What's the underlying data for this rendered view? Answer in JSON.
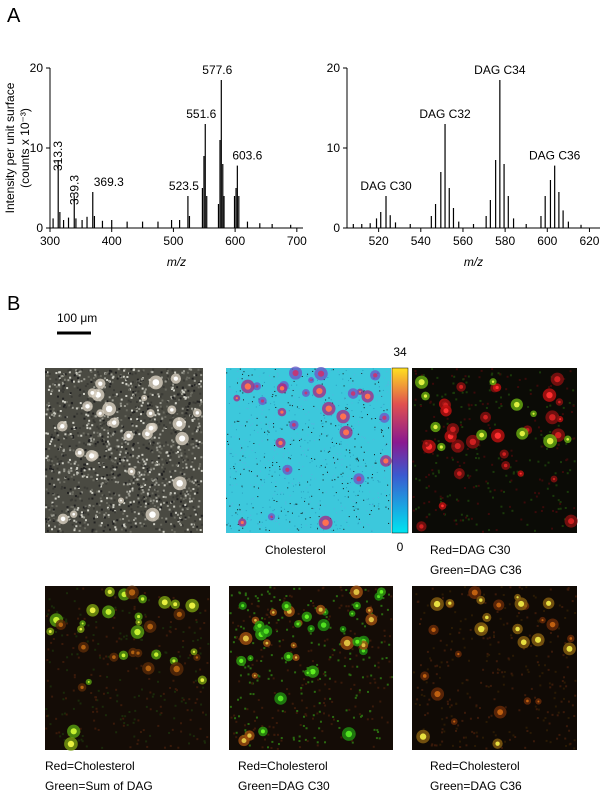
{
  "panel_labels": [
    "A",
    "B"
  ],
  "chart_data": [
    {
      "type": "bar",
      "xlabel": "m/z",
      "ylabel": [
        "Intensity per unit surface",
        "(counts x 10⁻³)"
      ],
      "xlim": [
        300,
        710
      ],
      "xticks": [
        300,
        400,
        500,
        600,
        700
      ],
      "ylim": [
        0,
        20
      ],
      "yticks": [
        0,
        10,
        20
      ],
      "color": "#000000",
      "x": [
        305,
        313.3,
        316,
        322,
        330,
        339.3,
        342,
        352,
        360,
        369.3,
        372,
        385,
        400,
        425,
        450,
        475,
        497,
        510,
        523.5,
        526,
        547,
        549.5,
        551.6,
        554,
        573,
        575.5,
        577.6,
        580,
        582,
        599,
        601.5,
        603.6,
        606,
        620,
        640,
        660,
        690
      ],
      "values": [
        1.2,
        8.5,
        2,
        1,
        1.3,
        4,
        1.2,
        1,
        1.4,
        4.5,
        1.5,
        0.9,
        1,
        0.8,
        0.8,
        0.8,
        1,
        1,
        4,
        1.5,
        5,
        9,
        13,
        4,
        3,
        11,
        18.5,
        8,
        4,
        4,
        5,
        7.8,
        4,
        0.8,
        0.6,
        0.5,
        0.4
      ],
      "peak_labels": {
        "x": [
          313.3,
          339.3,
          369.3,
          523.5,
          551.6,
          577.6,
          603.6
        ],
        "text": [
          "313.3",
          "339.3",
          "369.3",
          "523.5",
          "551.6",
          "577.6",
          "603.6"
        ]
      }
    },
    {
      "type": "bar",
      "xlabel": "m/z",
      "xlim": [
        505,
        625
      ],
      "xticks": [
        520,
        540,
        560,
        580,
        600,
        620
      ],
      "ylim": [
        0,
        20
      ],
      "yticks": [
        0,
        10,
        20
      ],
      "color": "#000000",
      "x": [
        508,
        512,
        516,
        519,
        521,
        523.5,
        525.5,
        528,
        535,
        545,
        547,
        549.5,
        551.5,
        553.5,
        555.5,
        558,
        565,
        571,
        573,
        575.5,
        577.5,
        579.5,
        581.5,
        584,
        590,
        597,
        599,
        601.5,
        603.5,
        605.5,
        607.5,
        610,
        616
      ],
      "values": [
        0.5,
        0.5,
        0.6,
        1.2,
        2,
        4,
        1.6,
        0.7,
        0.5,
        1.5,
        3,
        7,
        13,
        5,
        2.5,
        0.8,
        0.5,
        1.5,
        3.5,
        8.5,
        18.5,
        8,
        4,
        1.2,
        0.5,
        1.5,
        4,
        6,
        7.8,
        4.5,
        2.2,
        0.8,
        0.4
      ],
      "peak_labels": {
        "x": [
          523.5,
          551.5,
          577.5,
          603.5
        ],
        "text": [
          "DAG C30",
          "DAG C32",
          "DAG C34",
          "DAG C36"
        ]
      }
    }
  ],
  "scale_bar": "100 μm",
  "colorbar": {
    "max": 34,
    "min": 0
  },
  "captions": [
    "Cholesterol",
    "Red=DAG C30",
    "Green=DAG C36",
    "Red=Cholesterol",
    "Green=Sum of DAG",
    "Red=Cholesterol",
    "Green=DAG C30",
    "Red=Cholesterol",
    "Green=DAG C36"
  ]
}
